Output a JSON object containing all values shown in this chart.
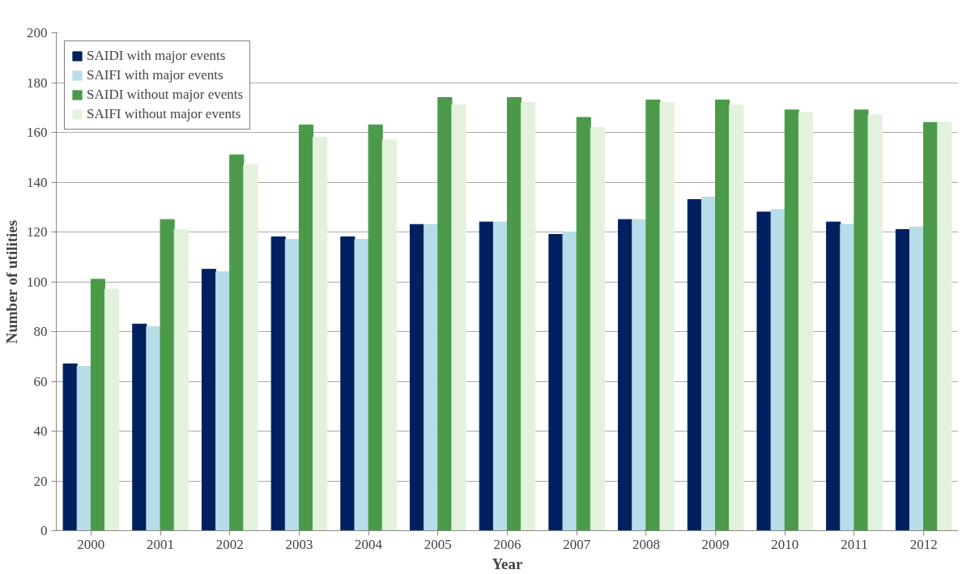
{
  "chart_data": {
    "type": "bar",
    "xlabel": "Year",
    "ylabel": "Number of utilities",
    "categories": [
      "2000",
      "2001",
      "2002",
      "2003",
      "2004",
      "2005",
      "2006",
      "2007",
      "2008",
      "2009",
      "2010",
      "2011",
      "2012"
    ],
    "series": [
      {
        "name": "SAIDI with major events",
        "color": "#002060",
        "values": [
          67,
          83,
          105,
          118,
          118,
          123,
          124,
          119,
          125,
          133,
          128,
          124,
          121
        ]
      },
      {
        "name": "SAIFI with major events",
        "color": "#b7dde8",
        "values": [
          66,
          82,
          104,
          117,
          117,
          123,
          124,
          120,
          125,
          134,
          129,
          123,
          122
        ]
      },
      {
        "name": "SAIDI without major events",
        "color": "#4a9a4a",
        "values": [
          101,
          125,
          151,
          163,
          163,
          174,
          174,
          166,
          173,
          173,
          169,
          169,
          164
        ]
      },
      {
        "name": "SAIFI without major events",
        "color": "#e3f2dc",
        "values": [
          97,
          121,
          147,
          158,
          157,
          171,
          172,
          162,
          172,
          171,
          168,
          167,
          164
        ]
      }
    ],
    "ylim": [
      0,
      200
    ],
    "yticks": [
      0,
      20,
      40,
      60,
      80,
      100,
      120,
      140,
      160,
      180,
      200
    ],
    "grid": "y",
    "legend": "top left"
  }
}
